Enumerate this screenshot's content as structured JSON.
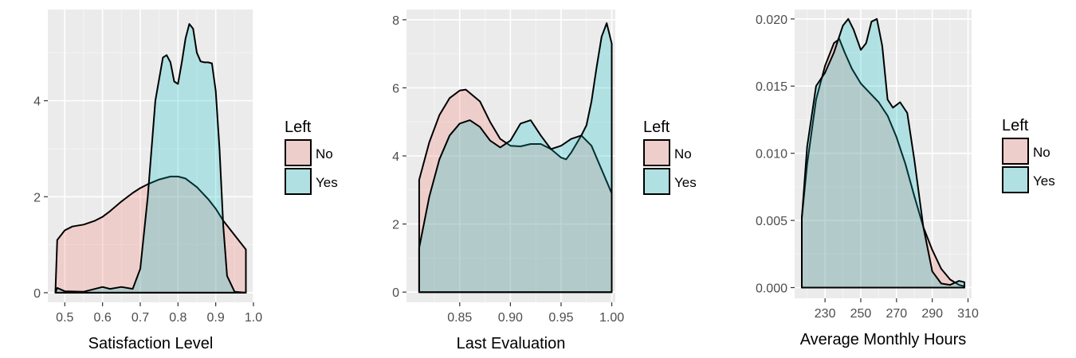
{
  "colors": {
    "panel_bg": "#ebebeb",
    "grid_major": "#ffffff",
    "grid_minor": "#f4f4f4",
    "tick": "#333333",
    "outline": "#000000",
    "No": "#f8766d",
    "Yes": "#00bfc4",
    "fill_alpha": 0.25
  },
  "legend": {
    "title": "Left",
    "keys": [
      "No",
      "Yes"
    ]
  },
  "chart_data": [
    {
      "type": "area",
      "subtype": "density",
      "xlabel": "Satisfaction Level",
      "ylabel": "",
      "xlim": [
        0.455,
        1.0
      ],
      "ylim": [
        -0.2,
        5.9
      ],
      "xticks": [
        0.5,
        0.6,
        0.7,
        0.8,
        0.9,
        1.0
      ],
      "xtick_labels": [
        "0.5",
        "0.6",
        "0.7",
        "0.8",
        "0.9",
        "1.0"
      ],
      "yticks": [
        0,
        2,
        4
      ],
      "ytick_labels": [
        "0",
        "2",
        "4"
      ],
      "grid": true,
      "legend": "right",
      "series": [
        {
          "name": "No",
          "x": [
            0.475,
            0.48,
            0.5,
            0.52,
            0.55,
            0.58,
            0.6,
            0.62,
            0.65,
            0.68,
            0.7,
            0.72,
            0.75,
            0.78,
            0.8,
            0.82,
            0.85,
            0.88,
            0.9,
            0.92,
            0.95,
            0.98
          ],
          "y": [
            0,
            1.1,
            1.3,
            1.38,
            1.42,
            1.5,
            1.58,
            1.7,
            1.9,
            2.08,
            2.18,
            2.26,
            2.36,
            2.42,
            2.42,
            2.38,
            2.2,
            1.95,
            1.75,
            1.5,
            1.2,
            0.9
          ]
        },
        {
          "name": "Yes",
          "x": [
            0.475,
            0.48,
            0.5,
            0.55,
            0.6,
            0.62,
            0.65,
            0.68,
            0.7,
            0.72,
            0.74,
            0.76,
            0.77,
            0.78,
            0.79,
            0.8,
            0.81,
            0.82,
            0.83,
            0.84,
            0.85,
            0.86,
            0.87,
            0.88,
            0.89,
            0.9,
            0.91,
            0.92,
            0.93,
            0.95,
            0.98
          ],
          "y": [
            0,
            0.1,
            0.03,
            0.02,
            0.12,
            0.08,
            0.12,
            0.08,
            0.5,
            2.0,
            4.0,
            4.9,
            4.95,
            4.8,
            4.4,
            4.35,
            4.8,
            5.3,
            5.6,
            5.5,
            5.0,
            4.82,
            4.8,
            4.8,
            4.78,
            4.2,
            3.0,
            1.4,
            0.35,
            0.02,
            0.0
          ]
        }
      ]
    },
    {
      "type": "area",
      "subtype": "density",
      "xlabel": "Last Evaluation",
      "ylabel": "",
      "xlim": [
        0.7975,
        1.0035
      ],
      "ylim": [
        -0.3,
        8.3
      ],
      "xticks": [
        0.85,
        0.9,
        0.95,
        1.0
      ],
      "xtick_labels": [
        "0.85",
        "0.90",
        "0.95",
        "1.00"
      ],
      "yticks": [
        0,
        2,
        4,
        6,
        8
      ],
      "ytick_labels": [
        "0",
        "2",
        "4",
        "6",
        "8"
      ],
      "grid": true,
      "legend": "right",
      "series": [
        {
          "name": "No",
          "x": [
            0.81,
            0.82,
            0.83,
            0.84,
            0.85,
            0.856,
            0.87,
            0.88,
            0.89,
            0.9,
            0.91,
            0.92,
            0.93,
            0.94,
            0.95,
            0.955,
            0.96,
            0.97,
            0.98,
            0.99,
            1.0
          ],
          "y": [
            3.3,
            4.4,
            5.2,
            5.7,
            5.92,
            5.95,
            5.6,
            5.0,
            4.5,
            4.3,
            4.28,
            4.35,
            4.35,
            4.2,
            3.95,
            3.9,
            4.1,
            4.6,
            4.3,
            3.6,
            2.9
          ]
        },
        {
          "name": "Yes",
          "x": [
            0.81,
            0.82,
            0.83,
            0.84,
            0.85,
            0.86,
            0.87,
            0.88,
            0.89,
            0.9,
            0.91,
            0.92,
            0.93,
            0.94,
            0.95,
            0.96,
            0.97,
            0.975,
            0.98,
            0.985,
            0.99,
            0.995,
            1.0
          ],
          "y": [
            1.3,
            2.8,
            3.9,
            4.6,
            4.95,
            5.05,
            4.85,
            4.45,
            4.25,
            4.45,
            4.95,
            5.05,
            4.6,
            4.2,
            4.3,
            4.5,
            4.6,
            4.9,
            5.6,
            6.6,
            7.5,
            7.9,
            7.3
          ]
        }
      ]
    },
    {
      "type": "area",
      "subtype": "density",
      "xlabel": "Average Monthly Hours",
      "ylabel": "",
      "xlim": [
        213,
        312
      ],
      "ylim": [
        -0.0008,
        0.0207
      ],
      "xticks": [
        230,
        250,
        270,
        290,
        310
      ],
      "xtick_labels": [
        "230",
        "250",
        "270",
        "290",
        "310"
      ],
      "yticks": [
        0.0,
        0.005,
        0.01,
        0.015,
        0.02
      ],
      "ytick_labels": [
        "0.000",
        "0.005",
        "0.010",
        "0.015",
        "0.020"
      ],
      "grid": true,
      "legend": "right",
      "series": [
        {
          "name": "No",
          "x": [
            217,
            220,
            225,
            230,
            235,
            238,
            241,
            245,
            250,
            255,
            260,
            265,
            270,
            275,
            280,
            285,
            290,
            295,
            300,
            305,
            308
          ],
          "y": [
            0.0052,
            0.0092,
            0.014,
            0.0165,
            0.0182,
            0.0185,
            0.0175,
            0.0163,
            0.0152,
            0.0145,
            0.0138,
            0.0128,
            0.0112,
            0.0092,
            0.0068,
            0.0045,
            0.0028,
            0.0014,
            0.0006,
            0.0002,
            0.0001
          ]
        },
        {
          "name": "Yes",
          "x": [
            217,
            220,
            225,
            230,
            235,
            240,
            243,
            246,
            250,
            253,
            256,
            259,
            262,
            265,
            268,
            272,
            276,
            280,
            285,
            290,
            295,
            300,
            305,
            308
          ],
          "y": [
            0.0052,
            0.0105,
            0.015,
            0.016,
            0.0175,
            0.0195,
            0.02,
            0.0192,
            0.0177,
            0.0182,
            0.0198,
            0.02,
            0.018,
            0.014,
            0.0134,
            0.0138,
            0.013,
            0.0095,
            0.0045,
            0.0012,
            0.0003,
            0.0002,
            0.0005,
            0.0004
          ]
        }
      ]
    }
  ]
}
